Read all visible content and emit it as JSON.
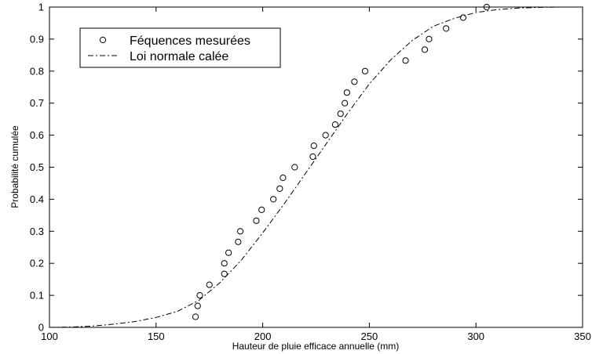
{
  "chart_data": {
    "type": "line",
    "xlabel": "Hauteur de pluie efficace annuelle (mm)",
    "ylabel": "Probabilité cumulée",
    "xlim": [
      100,
      350
    ],
    "ylim": [
      0,
      1
    ],
    "x_ticks": [
      100,
      150,
      200,
      250,
      300,
      350
    ],
    "x_tick_labels": [
      "100",
      "150",
      "200",
      "250",
      "300",
      "350"
    ],
    "y_ticks": [
      0,
      0.1,
      0.2,
      0.3,
      0.4,
      0.5,
      0.6,
      0.7,
      0.8,
      0.9,
      1
    ],
    "y_tick_labels": [
      "0",
      "0.1",
      "0.2",
      "0.3",
      "0.4",
      "0.5",
      "0.6",
      "0.7",
      "0.8",
      "0.9",
      "1"
    ],
    "grid": false,
    "legend_position": "top-left",
    "series": [
      {
        "name": "Féquences mesurées",
        "style": "markers",
        "marker": "open-circle",
        "color": "#000000",
        "points": [
          [
            168.5,
            0.033
          ],
          [
            169.5,
            0.067
          ],
          [
            170.5,
            0.1
          ],
          [
            175,
            0.133
          ],
          [
            182,
            0.167
          ],
          [
            182,
            0.2
          ],
          [
            184,
            0.233
          ],
          [
            188.5,
            0.267
          ],
          [
            189.5,
            0.3
          ],
          [
            197,
            0.333
          ],
          [
            199.5,
            0.367
          ],
          [
            205,
            0.4
          ],
          [
            208,
            0.433
          ],
          [
            209.5,
            0.467
          ],
          [
            215,
            0.5
          ],
          [
            223.5,
            0.533
          ],
          [
            224,
            0.567
          ],
          [
            229.5,
            0.6
          ],
          [
            234,
            0.633
          ],
          [
            236.5,
            0.667
          ],
          [
            238.5,
            0.7
          ],
          [
            239.5,
            0.733
          ],
          [
            243,
            0.767
          ],
          [
            248,
            0.8
          ],
          [
            267,
            0.833
          ],
          [
            276,
            0.867
          ],
          [
            278,
            0.9
          ],
          [
            286,
            0.933
          ],
          [
            294,
            0.967
          ],
          [
            305,
            1.0
          ]
        ]
      },
      {
        "name": "Loi normale calée",
        "style": "dash-dot",
        "color": "#000000",
        "points": [
          [
            100,
            0.0
          ],
          [
            110,
            0.001
          ],
          [
            120,
            0.004
          ],
          [
            130,
            0.01
          ],
          [
            140,
            0.018
          ],
          [
            150,
            0.031
          ],
          [
            160,
            0.05
          ],
          [
            170,
            0.084
          ],
          [
            180,
            0.14
          ],
          [
            190,
            0.21
          ],
          [
            200,
            0.295
          ],
          [
            210,
            0.385
          ],
          [
            220,
            0.48
          ],
          [
            230,
            0.575
          ],
          [
            240,
            0.67
          ],
          [
            250,
            0.76
          ],
          [
            260,
            0.835
          ],
          [
            270,
            0.895
          ],
          [
            280,
            0.94
          ],
          [
            290,
            0.965
          ],
          [
            300,
            0.983
          ],
          [
            310,
            0.992
          ],
          [
            320,
            0.997
          ],
          [
            330,
            0.999
          ],
          [
            340,
            1.0
          ],
          [
            350,
            1.0
          ]
        ]
      }
    ]
  }
}
